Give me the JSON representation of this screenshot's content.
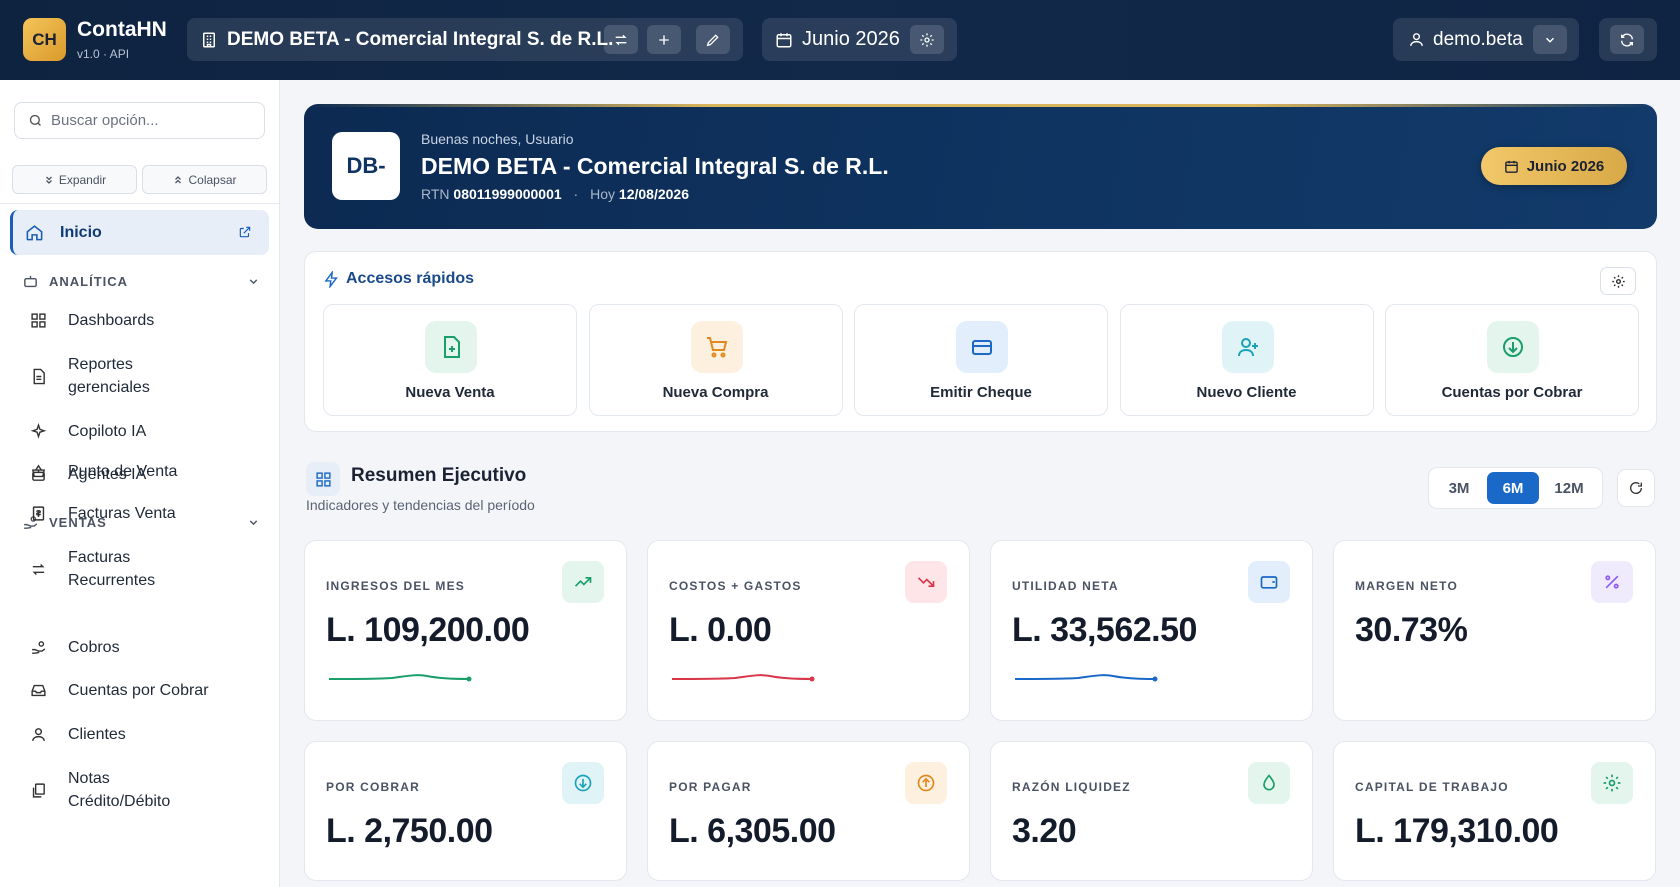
{
  "topbar": {
    "logo": "CH",
    "app_name": "ContaHN",
    "app_version": "v1.0 · API",
    "company": "DEMO BETA - Comercial Integral S. de R.L.",
    "period": "Junio 2026",
    "user": "demo.beta"
  },
  "sidebar": {
    "search_placeholder": "Buscar opción...",
    "expand_label": "Expandir",
    "collapse_label": "Colapsar",
    "home_label": "Inicio",
    "sections": [
      {
        "label": "ANALÍTICA",
        "items": [
          "Dashboards",
          "Reportes gerenciales",
          "Copiloto IA",
          "Agentes IA"
        ]
      },
      {
        "label": "VENTAS",
        "items": [
          "Punto de Venta",
          "Facturas Venta",
          "Facturas Recurrentes",
          "Cobros",
          "Cuentas por Cobrar",
          "Clientes",
          "Notas Crédito/Débito"
        ]
      }
    ]
  },
  "hero": {
    "avatar": "DB-",
    "greeting": "Buenas noches, Usuario",
    "company": "DEMO BETA - Comercial Integral S. de R.L.",
    "rtn_label": "RTN",
    "rtn": "08011999000001",
    "today_label": "Hoy",
    "today": "12/08/2026",
    "period_badge": "Junio 2026"
  },
  "quick_access": {
    "title": "Accesos rápidos",
    "items": [
      {
        "label": "Nueva Venta",
        "icon": "file-plus-icon",
        "color": "#1a9e6a",
        "bg": "#e3f5ed"
      },
      {
        "label": "Nueva Compra",
        "icon": "cart-icon",
        "color": "#e08a1e",
        "bg": "#fdf0df"
      },
      {
        "label": "Emitir Cheque",
        "icon": "card-icon",
        "color": "#1a68c7",
        "bg": "#e2eefb"
      },
      {
        "label": "Nuevo Cliente",
        "icon": "user-plus-icon",
        "color": "#1aa3b8",
        "bg": "#e0f4f7"
      },
      {
        "label": "Cuentas por Cobrar",
        "icon": "arrow-down-circle-icon",
        "color": "#1a9e6a",
        "bg": "#e3f5ed"
      }
    ]
  },
  "summary": {
    "title": "Resumen Ejecutivo",
    "subtitle": "Indicadores y tendencias del período",
    "ranges": [
      "3M",
      "6M",
      "12M"
    ],
    "active_range": "6M"
  },
  "kpis": [
    {
      "label": "INGRESOS DEL MES",
      "value": "L. 109,200.00",
      "icon": "trend-up-icon",
      "color": "#1a9e6a",
      "bg": "#e3f5ed",
      "spark": true
    },
    {
      "label": "COSTOS + GASTOS",
      "value": "L. 0.00",
      "icon": "trend-down-icon",
      "color": "#d9364a",
      "bg": "#fde5e8",
      "spark": true
    },
    {
      "label": "UTILIDAD NETA",
      "value": "L. 33,562.50",
      "icon": "wallet-icon",
      "color": "#1a68c7",
      "bg": "#e2eefb",
      "spark": true
    },
    {
      "label": "MARGEN NETO",
      "value": "30.73%",
      "icon": "percent-icon",
      "color": "#8b5cf6",
      "bg": "#f0eafd",
      "spark": false
    },
    {
      "label": "POR COBRAR",
      "value": "L. 2,750.00",
      "icon": "arrow-down-circle-icon",
      "color": "#1aa3b8",
      "bg": "#e0f4f7",
      "spark": false
    },
    {
      "label": "POR PAGAR",
      "value": "L. 6,305.00",
      "icon": "arrow-up-circle-icon",
      "color": "#e08a1e",
      "bg": "#fdf0df",
      "spark": false
    },
    {
      "label": "RAZÓN LIQUIDEZ",
      "value": "3.20",
      "icon": "droplet-icon",
      "color": "#1a9e6a",
      "bg": "#e3f5ed",
      "spark": false
    },
    {
      "label": "CAPITAL DE TRABAJO",
      "value": "L. 179,310.00",
      "icon": "gear-icon",
      "color": "#1a9e6a",
      "bg": "#e3f5ed",
      "spark": false
    }
  ]
}
